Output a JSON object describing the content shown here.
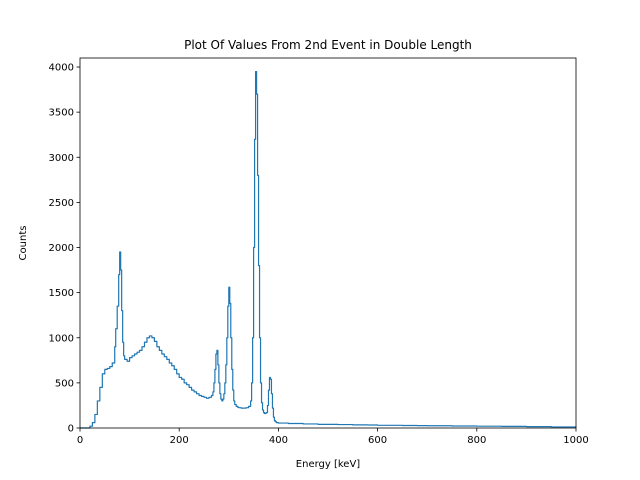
{
  "chart_data": {
    "type": "line",
    "style": "step",
    "title": "Plot Of Values From 2nd Event in Double Length",
    "xlabel": "Energy [keV]",
    "ylabel": "Counts",
    "xlim": [
      0,
      1000
    ],
    "ylim": [
      0,
      4100
    ],
    "xticks": [
      0,
      200,
      400,
      600,
      800,
      1000
    ],
    "yticks": [
      0,
      500,
      1000,
      1500,
      2000,
      2500,
      3000,
      3500,
      4000
    ],
    "grid": false,
    "legend": "none",
    "line_color": "#1f77b4",
    "series": [
      {
        "x": [
          0,
          15,
          20,
          25,
          30,
          35,
          40,
          45,
          50,
          55,
          60,
          65,
          70,
          72,
          75,
          78,
          80,
          82,
          84,
          86,
          88,
          90,
          95,
          100,
          105,
          110,
          115,
          120,
          125,
          130,
          135,
          140,
          145,
          150,
          155,
          160,
          165,
          170,
          175,
          180,
          185,
          190,
          195,
          200,
          205,
          210,
          215,
          220,
          225,
          230,
          235,
          240,
          245,
          250,
          255,
          260,
          265,
          268,
          270,
          272,
          274,
          276,
          278,
          280,
          282,
          284,
          286,
          288,
          290,
          292,
          294,
          296,
          298,
          300,
          302,
          304,
          306,
          308,
          310,
          312,
          315,
          318,
          320,
          325,
          330,
          335,
          340,
          344,
          346,
          348,
          350,
          352,
          354,
          356,
          358,
          360,
          362,
          364,
          366,
          368,
          370,
          372,
          375,
          378,
          380,
          382,
          384,
          386,
          388,
          390,
          392,
          394,
          396,
          400,
          420,
          450,
          480,
          500,
          520,
          550,
          580,
          600,
          620,
          650,
          680,
          700,
          750,
          800,
          850,
          900,
          950,
          1000
        ],
        "y": [
          0,
          0,
          20,
          60,
          150,
          300,
          450,
          600,
          650,
          660,
          680,
          720,
          900,
          1100,
          1350,
          1700,
          1950,
          1750,
          1300,
          950,
          800,
          760,
          740,
          780,
          800,
          820,
          840,
          860,
          900,
          950,
          1000,
          1020,
          1000,
          960,
          900,
          860,
          820,
          790,
          760,
          720,
          690,
          650,
          600,
          560,
          540,
          500,
          480,
          450,
          420,
          400,
          380,
          360,
          350,
          340,
          330,
          340,
          360,
          400,
          500,
          650,
          820,
          860,
          700,
          500,
          380,
          320,
          300,
          320,
          380,
          500,
          700,
          1000,
          1350,
          1560,
          1380,
          1000,
          650,
          420,
          300,
          260,
          240,
          230,
          225,
          220,
          220,
          225,
          240,
          300,
          500,
          1000,
          2000,
          3200,
          3950,
          3700,
          2800,
          1800,
          1000,
          500,
          280,
          200,
          170,
          160,
          170,
          250,
          420,
          560,
          540,
          380,
          220,
          120,
          80,
          70,
          60,
          55,
          50,
          45,
          40,
          40,
          38,
          35,
          33,
          30,
          30,
          28,
          26,
          25,
          22,
          20,
          18,
          15,
          12,
          10
        ]
      }
    ]
  }
}
